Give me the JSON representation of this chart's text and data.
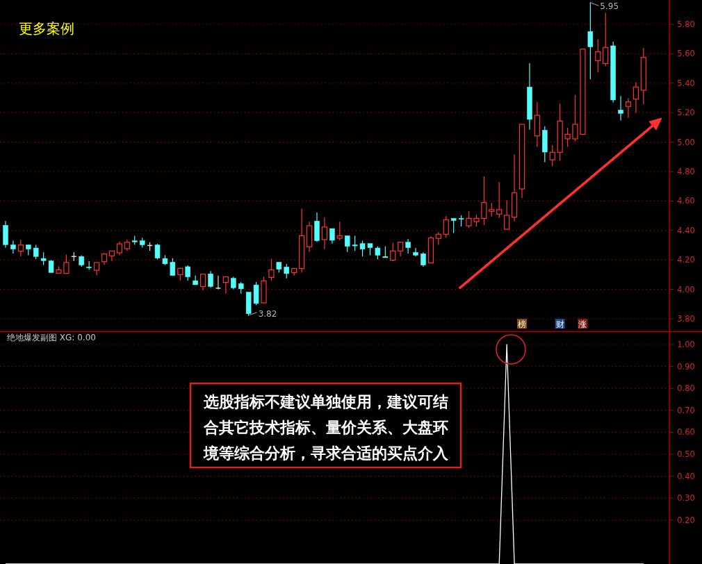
{
  "chart_data": [
    {
      "type": "candlestick",
      "categories": [
        null,
        null,
        null,
        null,
        null,
        null,
        null,
        null,
        null,
        null,
        null,
        null,
        null,
        null,
        null,
        null,
        null,
        null,
        null,
        null,
        null,
        null,
        null,
        null,
        null,
        null,
        null,
        null,
        null,
        null,
        null,
        null,
        null,
        null,
        null,
        null,
        null,
        null,
        null,
        null,
        null,
        null,
        null,
        null,
        null,
        null,
        null,
        null,
        null,
        null,
        null,
        null,
        null,
        null,
        null,
        null,
        null,
        null,
        null,
        null,
        null,
        null,
        null,
        null,
        null,
        null,
        null,
        null,
        null,
        null,
        null,
        null,
        null,
        null,
        null,
        null,
        null,
        null,
        null,
        null,
        null,
        null,
        null,
        null,
        null
      ],
      "ohlc": [
        [
          4.435,
          4.464,
          4.283,
          4.303
        ],
        [
          4.302,
          4.33,
          4.243,
          4.273
        ],
        [
          4.259,
          4.336,
          4.223,
          4.302
        ],
        [
          4.302,
          4.302,
          4.232,
          4.273
        ],
        [
          4.281,
          4.302,
          4.204,
          4.223
        ],
        [
          4.21,
          4.251,
          4.165,
          4.195
        ],
        [
          4.193,
          4.199,
          4.114,
          4.114
        ],
        [
          4.11,
          4.157,
          4.107,
          4.133
        ],
        [
          4.108,
          4.236,
          4.107,
          4.182
        ],
        [
          4.223,
          4.251,
          4.193,
          4.223
        ],
        [
          4.223,
          4.232,
          4.154,
          4.165
        ],
        [
          4.152,
          4.192,
          4.133,
          4.146
        ],
        [
          4.13,
          4.182,
          4.094,
          4.182
        ],
        [
          4.188,
          4.247,
          4.165,
          4.24
        ],
        [
          4.228,
          4.261,
          4.193,
          4.261
        ],
        [
          4.248,
          4.325,
          4.232,
          4.309
        ],
        [
          4.276,
          4.336,
          4.262,
          4.32
        ],
        [
          4.33,
          4.364,
          4.302,
          4.322
        ],
        [
          4.33,
          4.35,
          4.283,
          4.302
        ],
        [
          4.298,
          4.32,
          4.262,
          4.298
        ],
        [
          4.302,
          4.309,
          4.204,
          4.212
        ],
        [
          4.21,
          4.232,
          4.165,
          4.173
        ],
        [
          4.184,
          4.212,
          4.094,
          4.094
        ],
        [
          4.1,
          4.143,
          4.059,
          4.143
        ],
        [
          4.154,
          4.163,
          4.059,
          4.085
        ],
        [
          4.059,
          4.094,
          4.031,
          4.031
        ],
        [
          4.019,
          4.103,
          3.992,
          4.103
        ],
        [
          4.105,
          4.124,
          4.012,
          4.019
        ],
        [
          4.008,
          4.094,
          4.0,
          4.008
        ],
        [
          4.047,
          4.085,
          3.971,
          4.085
        ],
        [
          4.075,
          4.085,
          4.0,
          4.011
        ],
        [
          4.039,
          4.05,
          3.971,
          4.003
        ],
        [
          3.981,
          3.981,
          3.82,
          3.835
        ],
        [
          4.03,
          4.05,
          3.893,
          3.904
        ],
        [
          3.908,
          4.086,
          3.905,
          4.058
        ],
        [
          4.081,
          4.207,
          4.059,
          4.133
        ],
        [
          4.184,
          4.184,
          4.113,
          4.136
        ],
        [
          4.152,
          4.173,
          4.075,
          4.107
        ],
        [
          4.113,
          4.147,
          4.094,
          4.141
        ],
        [
          4.141,
          4.547,
          4.114,
          4.364
        ],
        [
          4.289,
          4.459,
          4.254,
          4.432
        ],
        [
          4.464,
          4.522,
          4.322,
          4.33
        ],
        [
          4.338,
          4.489,
          4.273,
          4.423
        ],
        [
          4.413,
          4.413,
          4.311,
          4.333
        ],
        [
          4.347,
          4.459,
          4.333,
          4.364
        ],
        [
          4.364,
          4.364,
          4.254,
          4.292
        ],
        [
          4.302,
          4.364,
          4.262,
          4.295
        ],
        [
          4.311,
          4.33,
          4.223,
          4.273
        ],
        [
          4.311,
          4.311,
          4.232,
          4.283
        ],
        [
          4.281,
          4.292,
          4.204,
          4.232
        ],
        [
          4.223,
          4.292,
          4.215,
          4.215
        ],
        [
          4.198,
          4.316,
          4.193,
          4.261
        ],
        [
          4.261,
          4.32,
          4.223,
          4.32
        ],
        [
          4.32,
          4.341,
          4.243,
          4.283
        ],
        [
          4.251,
          4.281,
          4.223,
          4.232
        ],
        [
          4.242,
          4.251,
          4.154,
          4.165
        ],
        [
          4.179,
          4.36,
          4.179,
          4.35
        ],
        [
          4.346,
          4.39,
          4.302,
          4.374
        ],
        [
          4.374,
          4.498,
          4.35,
          4.473
        ],
        [
          4.482,
          4.482,
          4.382,
          4.467
        ],
        [
          4.482,
          4.503,
          4.427,
          4.476
        ],
        [
          4.432,
          4.53,
          4.416,
          4.482
        ],
        [
          4.46,
          4.508,
          4.427,
          4.482
        ],
        [
          4.482,
          4.767,
          4.437,
          4.589
        ],
        [
          4.53,
          4.586,
          4.495,
          4.541
        ],
        [
          4.511,
          4.728,
          4.484,
          4.541
        ],
        [
          4.408,
          4.605,
          4.408,
          4.503
        ],
        [
          4.49,
          4.916,
          4.464,
          4.655
        ],
        [
          4.682,
          5.121,
          4.621,
          5.121
        ],
        [
          5.374,
          5.536,
          5.085,
          5.154
        ],
        [
          5.042,
          5.272,
          4.967,
          5.182
        ],
        [
          5.081,
          5.108,
          4.864,
          4.932
        ],
        [
          4.88,
          4.979,
          4.836,
          4.931
        ],
        [
          4.931,
          5.261,
          4.874,
          5.143
        ],
        [
          5.022,
          5.097,
          4.968,
          5.053
        ],
        [
          5.022,
          5.32,
          5.006,
          5.121
        ],
        [
          5.053,
          5.632,
          5.048,
          5.632
        ],
        [
          5.751,
          5.95,
          5.426,
          5.647
        ],
        [
          5.553,
          5.698,
          5.475,
          5.613
        ],
        [
          5.533,
          5.879,
          5.514,
          5.643
        ],
        [
          5.654,
          5.682,
          5.269,
          5.286
        ],
        [
          5.218,
          5.313,
          5.147,
          5.195
        ],
        [
          5.242,
          5.297,
          5.166,
          5.273
        ],
        [
          5.292,
          5.407,
          5.199,
          5.374
        ],
        [
          5.352,
          5.64,
          5.258,
          5.575
        ]
      ],
      "colors": [
        "#54fcfc",
        "#54fcfc",
        "#ff3232",
        "#54fcfc",
        "#54fcfc",
        "#54fcfc",
        "#54fcfc",
        "#ff3232",
        "#ff3232",
        "#e0e0e0",
        "#54fcfc",
        "#54fcfc",
        "#ff3232",
        "#ff3232",
        "#ff3232",
        "#ff3232",
        "#ff3232",
        "#54fcfc",
        "#54fcfc",
        "#e0e0e0",
        "#54fcfc",
        "#54fcfc",
        "#54fcfc",
        "#ff3232",
        "#54fcfc",
        "#54fcfc",
        "#ff3232",
        "#54fcfc",
        "#e0e0e0",
        "#ff3232",
        "#54fcfc",
        "#54fcfc",
        "#54fcfc",
        "#54fcfc",
        "#ff3232",
        "#ff3232",
        "#54fcfc",
        "#54fcfc",
        "#ff3232",
        "#ff3232",
        "#ff3232",
        "#54fcfc",
        "#ff3232",
        "#54fcfc",
        "#ff3232",
        "#54fcfc",
        "#54fcfc",
        "#54fcfc",
        "#54fcfc",
        "#54fcfc",
        "#54fcfc",
        "#ff3232",
        "#ff3232",
        "#54fcfc",
        "#54fcfc",
        "#54fcfc",
        "#ff3232",
        "#ff3232",
        "#ff3232",
        "#54fcfc",
        "#54fcfc",
        "#ff3232",
        "#ff3232",
        "#ff3232",
        "#ff3232",
        "#ff3232",
        "#ff3232",
        "#ff3232",
        "#ff3232",
        "#54fcfc",
        "#ff3232",
        "#54fcfc",
        "#ff3232",
        "#ff3232",
        "#ff3232",
        "#ff3232",
        "#ff3232",
        "#54fcfc",
        "#ff3232",
        "#ff3232",
        "#54fcfc",
        "#54fcfc",
        "#ff3232",
        "#ff3232",
        "#ff3232"
      ],
      "ylim": [
        3.715,
        5.965
      ],
      "yticks": [
        {
          "value": 3.8,
          "label": "3.80"
        },
        {
          "value": 4.0,
          "label": "4.00"
        },
        {
          "value": 4.2,
          "label": "4.20"
        },
        {
          "value": 4.4,
          "label": "4.40"
        },
        {
          "value": 4.6,
          "label": "4.60"
        },
        {
          "value": 4.8,
          "label": "4.80"
        },
        {
          "value": 5.0,
          "label": "5.00"
        },
        {
          "value": 5.2,
          "label": "5.20"
        },
        {
          "value": 5.4,
          "label": "5.40"
        },
        {
          "value": 5.6,
          "label": "5.60"
        },
        {
          "value": 5.8,
          "label": "5.80"
        }
      ],
      "grid": "y",
      "tick_labels": "y",
      "annotations": [
        "更多案例",
        "5.95",
        "3.82",
        "榜",
        "财",
        "涨"
      ]
    },
    {
      "type": "line",
      "title": "绝地爆发副图 XG: 0.00",
      "categories": [
        null,
        null,
        null,
        null,
        null,
        null,
        null,
        null,
        null,
        null,
        null,
        null,
        null,
        null,
        null,
        null,
        null,
        null,
        null,
        null,
        null,
        null,
        null,
        null,
        null,
        null,
        null,
        null,
        null,
        null,
        null,
        null,
        null,
        null,
        null,
        null,
        null,
        null,
        null,
        null,
        null,
        null,
        null,
        null,
        null,
        null,
        null,
        null,
        null,
        null,
        null,
        null,
        null,
        null,
        null,
        null,
        null,
        null,
        null,
        null,
        null,
        null,
        null,
        null,
        null,
        null,
        null,
        null,
        null,
        null,
        null,
        null,
        null,
        null,
        null,
        null,
        null,
        null,
        null,
        null,
        null,
        null,
        null,
        null,
        null
      ],
      "series": [
        {
          "color": "#ffffff",
          "values": [
            0,
            0,
            0,
            0,
            0,
            0,
            0,
            0,
            0,
            0,
            0,
            0,
            0,
            0,
            0,
            0,
            0,
            0,
            0,
            0,
            0,
            0,
            0,
            0,
            0,
            0,
            0,
            0,
            0,
            0,
            0,
            0,
            0,
            0,
            0,
            0,
            0,
            0,
            0,
            0,
            0,
            0,
            0,
            0,
            0,
            0,
            0,
            0,
            0,
            0,
            0,
            0,
            0,
            0,
            0,
            0,
            0,
            0,
            0,
            0,
            0,
            0,
            0,
            0,
            0,
            0,
            1,
            0,
            0,
            0,
            0,
            0,
            0,
            0,
            0,
            0,
            0,
            0,
            0,
            0,
            0,
            0,
            0,
            0,
            0
          ]
        }
      ],
      "ylim": [
        0,
        1.057
      ],
      "yticks": [
        {
          "value": 0.2,
          "label": "0.20"
        },
        {
          "value": 0.3,
          "label": "0.30"
        },
        {
          "value": 0.4,
          "label": "0.40"
        },
        {
          "value": 0.5,
          "label": "0.50"
        },
        {
          "value": 0.6,
          "label": "0.60"
        },
        {
          "value": 0.7,
          "label": "0.70"
        },
        {
          "value": 0.8,
          "label": "0.80"
        },
        {
          "value": 0.9,
          "label": "0.90"
        },
        {
          "value": 1.0,
          "label": "1.00"
        }
      ],
      "grid": "y",
      "tick_labels": "y",
      "annotations": [
        "选股指标不建议单独使用，建议可结合其它技术指标、量价关系、大盘环境等综合分析，寻求合适的买点介入"
      ]
    }
  ]
}
